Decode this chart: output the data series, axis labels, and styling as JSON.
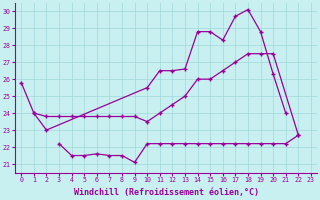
{
  "xlabel": "Windchill (Refroidissement éolien,°C)",
  "background_color": "#c8f0f0",
  "grid_color": "#a0d8d8",
  "line_color": "#990099",
  "xlim": [
    -0.5,
    23.5
  ],
  "ylim": [
    20.5,
    30.5
  ],
  "yticks": [
    21,
    22,
    23,
    24,
    25,
    26,
    27,
    28,
    29,
    30
  ],
  "xticks": [
    0,
    1,
    2,
    3,
    4,
    5,
    6,
    7,
    8,
    9,
    10,
    11,
    12,
    13,
    14,
    15,
    16,
    17,
    18,
    19,
    20,
    21,
    22,
    23
  ],
  "line1_x": [
    0,
    1,
    2,
    10,
    11,
    12,
    13,
    14,
    15,
    16,
    17,
    18,
    19,
    20,
    21
  ],
  "line1_y": [
    25.8,
    24.0,
    23.0,
    25.5,
    26.5,
    26.5,
    26.6,
    28.8,
    28.8,
    28.3,
    29.7,
    30.1,
    28.8,
    26.3,
    24.0
  ],
  "line2_x": [
    1,
    2,
    3,
    4,
    5,
    6,
    7,
    8,
    9,
    10,
    11,
    12,
    13,
    14,
    15,
    16,
    17,
    18,
    19,
    20,
    22
  ],
  "line2_y": [
    24.0,
    23.8,
    23.8,
    23.8,
    23.8,
    23.8,
    23.8,
    23.8,
    23.8,
    23.5,
    24.0,
    24.5,
    25.0,
    26.0,
    26.0,
    26.5,
    27.0,
    27.5,
    27.5,
    27.5,
    22.7
  ],
  "line3_x": [
    3,
    4,
    5,
    6,
    7,
    8,
    9,
    10,
    11,
    12,
    13,
    14,
    15,
    16,
    17,
    18,
    19,
    20,
    21,
    22
  ],
  "line3_y": [
    22.2,
    21.5,
    21.5,
    21.6,
    21.5,
    21.5,
    21.1,
    22.2,
    22.2,
    22.2,
    22.2,
    22.2,
    22.2,
    22.2,
    22.2,
    22.2,
    22.2,
    22.2,
    22.2,
    22.7
  ]
}
